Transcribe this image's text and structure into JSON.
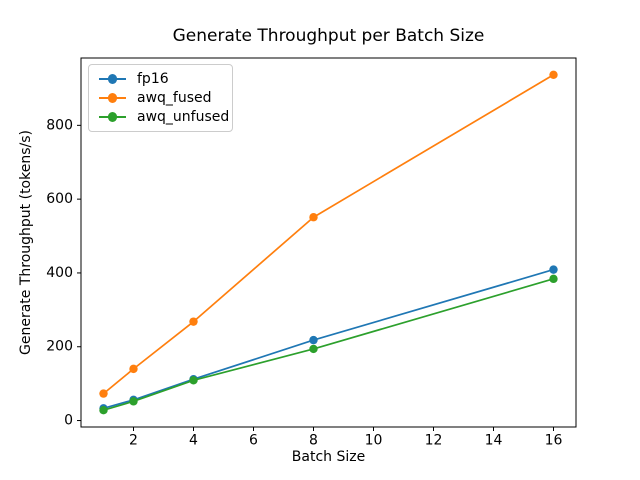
{
  "chart_data": {
    "type": "line",
    "title": "Generate Throughput per Batch Size",
    "xlabel": "Batch Size",
    "ylabel": "Generate Throughput (tokens/s)",
    "x": [
      1,
      2,
      4,
      8,
      16
    ],
    "series": [
      {
        "name": "fp16",
        "color": "#1f77b4",
        "values": [
          33,
          56,
          112,
          218,
          409
        ]
      },
      {
        "name": "awq_fused",
        "color": "#ff7f0e",
        "values": [
          73,
          140,
          268,
          551,
          937
        ]
      },
      {
        "name": "awq_unfused",
        "color": "#2ca02c",
        "values": [
          28,
          52,
          109,
          194,
          384
        ]
      }
    ],
    "x_ticks": [
      2,
      4,
      6,
      8,
      10,
      12,
      14,
      16
    ],
    "y_ticks": [
      0,
      200,
      400,
      600,
      800
    ],
    "xlim": [
      0.25,
      16.75
    ],
    "ylim": [
      -17.5,
      982.5
    ],
    "grid": false,
    "marker": "o",
    "legend_position": "upper left",
    "axis_color": "#000000",
    "background": "#ffffff"
  }
}
